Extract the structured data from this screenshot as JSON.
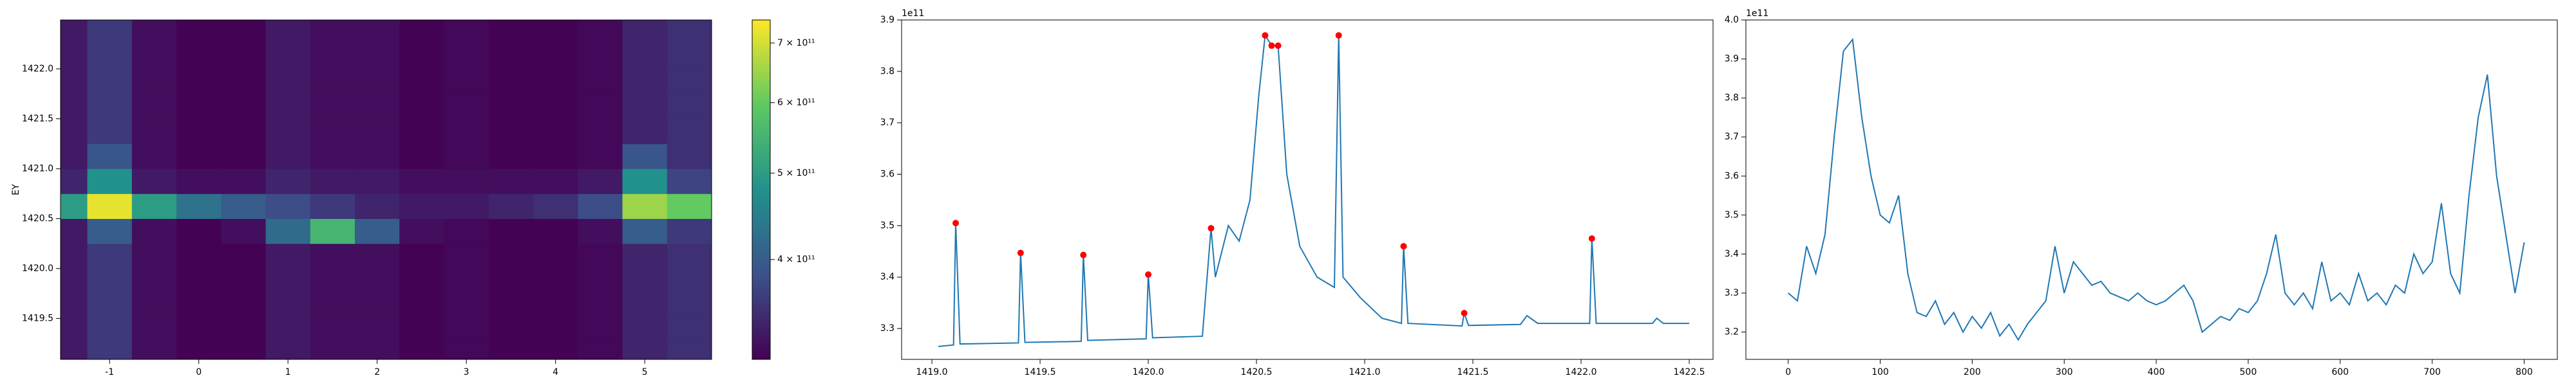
{
  "chart_data": [
    {
      "type": "heatmap",
      "ylabel": "EY",
      "colormap": "viridis",
      "color_scale": "log",
      "x": [
        -1.5,
        -1,
        -0.5,
        0,
        0.5,
        1,
        1.5,
        2,
        2.5,
        3,
        3.5,
        4,
        4.5,
        5,
        5.5
      ],
      "y": [
        1419.125,
        1419.375,
        1419.625,
        1419.875,
        1420.125,
        1420.375,
        1420.625,
        1420.875,
        1421.125,
        1421.375,
        1421.625,
        1421.875,
        1422.125,
        1422.375
      ],
      "z": [
        [
          330000000000.0,
          360000000000.0,
          320000000000.0,
          310000000000.0,
          310000000000.0,
          330000000000.0,
          320000000000.0,
          320000000000.0,
          310000000000.0,
          315000000000.0,
          310000000000.0,
          310000000000.0,
          315000000000.0,
          340000000000.0,
          350000000000.0
        ],
        [
          330000000000.0,
          360000000000.0,
          320000000000.0,
          310000000000.0,
          310000000000.0,
          330000000000.0,
          320000000000.0,
          320000000000.0,
          310000000000.0,
          315000000000.0,
          310000000000.0,
          310000000000.0,
          315000000000.0,
          340000000000.0,
          350000000000.0
        ],
        [
          330000000000.0,
          360000000000.0,
          320000000000.0,
          310000000000.0,
          310000000000.0,
          330000000000.0,
          320000000000.0,
          320000000000.0,
          310000000000.0,
          315000000000.0,
          310000000000.0,
          310000000000.0,
          315000000000.0,
          340000000000.0,
          350000000000.0
        ],
        [
          330000000000.0,
          360000000000.0,
          320000000000.0,
          310000000000.0,
          310000000000.0,
          330000000000.0,
          320000000000.0,
          320000000000.0,
          310000000000.0,
          315000000000.0,
          310000000000.0,
          310000000000.0,
          315000000000.0,
          340000000000.0,
          350000000000.0
        ],
        [
          330000000000.0,
          360000000000.0,
          320000000000.0,
          310000000000.0,
          310000000000.0,
          330000000000.0,
          320000000000.0,
          320000000000.0,
          310000000000.0,
          315000000000.0,
          310000000000.0,
          310000000000.0,
          315000000000.0,
          340000000000.0,
          350000000000.0
        ],
        [
          330000000000.0,
          400000000000.0,
          320000000000.0,
          310000000000.0,
          320000000000.0,
          420000000000.0,
          550000000000.0,
          400000000000.0,
          320000000000.0,
          315000000000.0,
          310000000000.0,
          310000000000.0,
          320000000000.0,
          400000000000.0,
          360000000000.0
        ],
        [
          500000000000.0,
          720000000000.0,
          500000000000.0,
          430000000000.0,
          400000000000.0,
          380000000000.0,
          360000000000.0,
          340000000000.0,
          330000000000.0,
          330000000000.0,
          340000000000.0,
          350000000000.0,
          380000000000.0,
          650000000000.0,
          600000000000.0
        ],
        [
          340000000000.0,
          480000000000.0,
          330000000000.0,
          320000000000.0,
          320000000000.0,
          340000000000.0,
          330000000000.0,
          330000000000.0,
          320000000000.0,
          320000000000.0,
          320000000000.0,
          320000000000.0,
          330000000000.0,
          480000000000.0,
          370000000000.0
        ],
        [
          330000000000.0,
          390000000000.0,
          320000000000.0,
          310000000000.0,
          310000000000.0,
          330000000000.0,
          320000000000.0,
          320000000000.0,
          310000000000.0,
          315000000000.0,
          310000000000.0,
          310000000000.0,
          315000000000.0,
          390000000000.0,
          350000000000.0
        ],
        [
          330000000000.0,
          360000000000.0,
          320000000000.0,
          310000000000.0,
          310000000000.0,
          330000000000.0,
          320000000000.0,
          320000000000.0,
          310000000000.0,
          315000000000.0,
          310000000000.0,
          310000000000.0,
          315000000000.0,
          340000000000.0,
          350000000000.0
        ],
        [
          330000000000.0,
          360000000000.0,
          320000000000.0,
          310000000000.0,
          310000000000.0,
          330000000000.0,
          320000000000.0,
          320000000000.0,
          310000000000.0,
          315000000000.0,
          310000000000.0,
          310000000000.0,
          315000000000.0,
          340000000000.0,
          350000000000.0
        ],
        [
          330000000000.0,
          360000000000.0,
          320000000000.0,
          310000000000.0,
          310000000000.0,
          330000000000.0,
          320000000000.0,
          320000000000.0,
          310000000000.0,
          315000000000.0,
          310000000000.0,
          310000000000.0,
          315000000000.0,
          340000000000.0,
          350000000000.0
        ],
        [
          330000000000.0,
          360000000000.0,
          320000000000.0,
          310000000000.0,
          310000000000.0,
          330000000000.0,
          320000000000.0,
          320000000000.0,
          310000000000.0,
          315000000000.0,
          310000000000.0,
          310000000000.0,
          315000000000.0,
          340000000000.0,
          350000000000.0
        ],
        [
          330000000000.0,
          360000000000.0,
          320000000000.0,
          310000000000.0,
          310000000000.0,
          330000000000.0,
          320000000000.0,
          320000000000.0,
          310000000000.0,
          315000000000.0,
          310000000000.0,
          310000000000.0,
          315000000000.0,
          340000000000.0,
          350000000000.0
        ]
      ],
      "xlim": [
        -1.55,
        5.75
      ],
      "ylim": [
        1419.09,
        1422.49
      ],
      "xticks": [
        -1,
        0,
        1,
        2,
        3,
        4,
        5
      ],
      "yticks": [
        1419.5,
        {
          "value": 1420.0,
          "label": "1420.0"
        },
        1420.5,
        {
          "value": 1421.0,
          "label": "1421.0"
        },
        1421.5,
        {
          "value": 1422.0,
          "label": "1422.0"
        }
      ],
      "clim": [
        309000000000.0,
        743000000000.0
      ],
      "cticks": [
        {
          "value": 400000000000.0,
          "label": "4 × 10¹¹"
        },
        {
          "value": 500000000000.0,
          "label": "5 × 10¹¹"
        },
        {
          "value": 600000000000.0,
          "label": "6 × 10¹¹"
        },
        {
          "value": 700000000000.0,
          "label": "7 × 10¹¹"
        }
      ]
    },
    {
      "type": "line",
      "offset_label": "1e11",
      "series": [
        {
          "color": "#1f77b4",
          "x": [
            1419.03,
            1419.1,
            1419.11,
            1419.13,
            1419.4,
            1419.41,
            1419.43,
            1419.69,
            1419.7,
            1419.72,
            1419.99,
            1420.0,
            1420.02,
            1420.25,
            1420.29,
            1420.31,
            1420.37,
            1420.42,
            1420.47,
            1420.51,
            1420.54,
            1420.57,
            1420.6,
            1420.64,
            1420.7,
            1420.78,
            1420.86,
            1420.88,
            1420.9,
            1420.98,
            1421.08,
            1421.17,
            1421.18,
            1421.2,
            1421.45,
            1421.46,
            1421.48,
            1421.72,
            1421.75,
            1421.8,
            1422.04,
            1422.05,
            1422.07,
            1422.33,
            1422.35,
            1422.38,
            1422.5
          ],
          "values": [
            3.265,
            3.268,
            3.505,
            3.27,
            3.272,
            3.447,
            3.273,
            3.275,
            3.443,
            3.277,
            3.28,
            3.405,
            3.282,
            3.285,
            3.495,
            3.4,
            3.5,
            3.47,
            3.55,
            3.75,
            3.87,
            3.85,
            3.85,
            3.6,
            3.46,
            3.4,
            3.38,
            3.87,
            3.4,
            3.36,
            3.32,
            3.31,
            3.46,
            3.31,
            3.305,
            3.33,
            3.306,
            3.308,
            3.325,
            3.31,
            3.31,
            3.475,
            3.31,
            3.31,
            3.32,
            3.31,
            3.31
          ]
        }
      ],
      "markers": {
        "color": "red",
        "x": [
          1419.11,
          1419.41,
          1419.7,
          1420.0,
          1420.29,
          1420.54,
          1420.57,
          1420.6,
          1420.88,
          1421.18,
          1421.46,
          1422.05
        ],
        "values": [
          3.505,
          3.447,
          3.443,
          3.405,
          3.495,
          3.87,
          3.85,
          3.85,
          3.87,
          3.46,
          3.33,
          3.475
        ]
      },
      "xlim": [
        1418.86,
        1422.61
      ],
      "ylim": [
        3.24,
        3.9
      ],
      "xticks": [
        {
          "value": 1419.0,
          "label": "1419.0"
        },
        1419.5,
        {
          "value": 1420.0,
          "label": "1420.0"
        },
        1420.5,
        {
          "value": 1421.0,
          "label": "1421.0"
        },
        1421.5,
        {
          "value": 1422.0,
          "label": "1422.0"
        },
        1422.5
      ],
      "yticks": [
        3.3,
        3.4,
        3.5,
        3.6,
        3.7,
        3.8,
        3.9
      ]
    },
    {
      "type": "line",
      "offset_label": "1e11",
      "series": [
        {
          "color": "#1f77b4",
          "x": [
            0,
            10,
            20,
            30,
            40,
            50,
            60,
            70,
            80,
            90,
            100,
            110,
            120,
            130,
            140,
            150,
            160,
            170,
            180,
            190,
            200,
            210,
            220,
            230,
            240,
            250,
            260,
            270,
            280,
            290,
            300,
            310,
            320,
            330,
            340,
            350,
            360,
            370,
            380,
            390,
            400,
            410,
            420,
            430,
            440,
            450,
            460,
            470,
            480,
            490,
            500,
            510,
            520,
            530,
            540,
            550,
            560,
            570,
            580,
            590,
            600,
            610,
            620,
            630,
            640,
            650,
            660,
            670,
            680,
            690,
            700,
            710,
            720,
            730,
            740,
            750,
            760,
            770,
            780,
            790,
            800
          ],
          "values": [
            3.3,
            3.28,
            3.42,
            3.35,
            3.45,
            3.7,
            3.92,
            3.95,
            3.75,
            3.6,
            3.5,
            3.48,
            3.55,
            3.35,
            3.25,
            3.24,
            3.28,
            3.22,
            3.25,
            3.2,
            3.24,
            3.21,
            3.25,
            3.19,
            3.22,
            3.18,
            3.22,
            3.25,
            3.28,
            3.42,
            3.3,
            3.38,
            3.35,
            3.32,
            3.33,
            3.3,
            3.29,
            3.28,
            3.3,
            3.28,
            3.27,
            3.28,
            3.3,
            3.32,
            3.28,
            3.2,
            3.22,
            3.24,
            3.23,
            3.26,
            3.25,
            3.28,
            3.35,
            3.45,
            3.3,
            3.27,
            3.3,
            3.26,
            3.38,
            3.28,
            3.3,
            3.27,
            3.35,
            3.28,
            3.3,
            3.27,
            3.32,
            3.3,
            3.4,
            3.35,
            3.38,
            3.53,
            3.35,
            3.3,
            3.55,
            3.75,
            3.86,
            3.6,
            3.45,
            3.3,
            3.43
          ]
        }
      ],
      "xlim": [
        -46,
        836
      ],
      "ylim": [
        3.13,
        4.0
      ],
      "xticks": [
        0,
        100,
        200,
        300,
        400,
        500,
        600,
        700,
        800
      ],
      "yticks": [
        3.2,
        3.3,
        3.4,
        3.5,
        3.6,
        3.7,
        3.8,
        3.9,
        {
          "value": 4.0,
          "label": "4.0"
        }
      ]
    }
  ]
}
